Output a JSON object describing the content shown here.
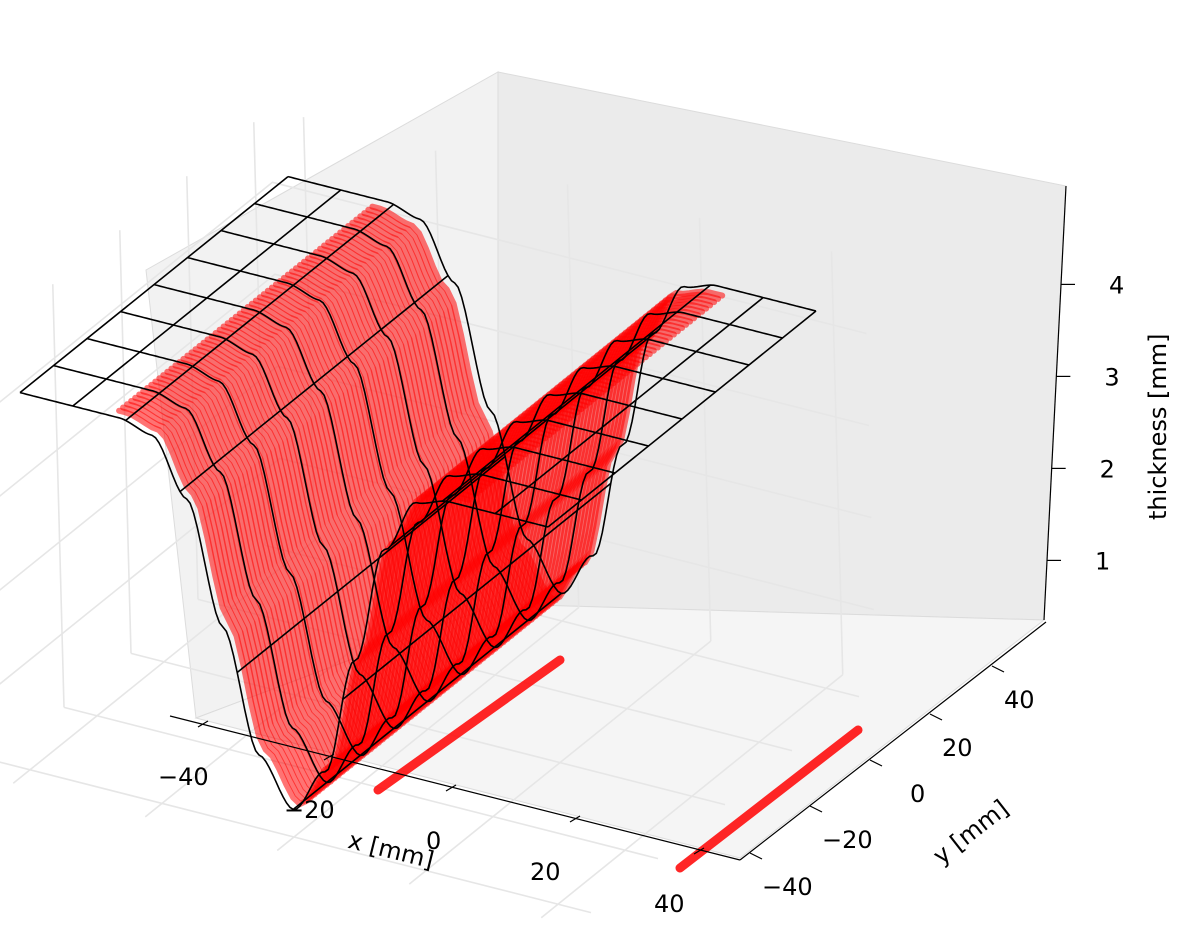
{
  "chart_data": {
    "type": "surface3d",
    "title": "",
    "xlabel": "x [mm]",
    "ylabel": "y [mm]",
    "zlabel": "thickness [mm]",
    "xlim": [
      -45,
      45
    ],
    "ylim": [
      -45,
      45
    ],
    "zlim": [
      0.2,
      4.8
    ],
    "x_ticks": [
      -40,
      -20,
      0,
      20,
      40
    ],
    "y_ticks": [
      -40,
      -20,
      0,
      20,
      40
    ],
    "z_ticks": [
      1,
      2,
      3,
      4
    ],
    "x_tick_labels": [
      "−40",
      "−20",
      "0",
      "20",
      "40"
    ],
    "y_tick_labels": [
      "−40",
      "−20",
      "0",
      "20",
      "40"
    ],
    "z_tick_labels": [
      "1",
      "2",
      "3",
      "4"
    ],
    "surface": {
      "description_of_profile": "V-groove thickness profile across x, constant along y",
      "x": [
        -40,
        -35,
        -30,
        -25,
        -20,
        -15,
        -10,
        -5,
        0,
        5,
        10,
        15,
        20,
        25,
        30,
        35,
        40
      ],
      "thickness": [
        4.3,
        4.3,
        4.3,
        4.3,
        4.2,
        3.6,
        2.3,
        1.0,
        0.5,
        1.0,
        2.3,
        3.6,
        4.2,
        4.3,
        4.3,
        4.3,
        4.3
      ],
      "wireframe_color": "#000000",
      "scatter_color": "#ff0000"
    },
    "grid": true
  }
}
